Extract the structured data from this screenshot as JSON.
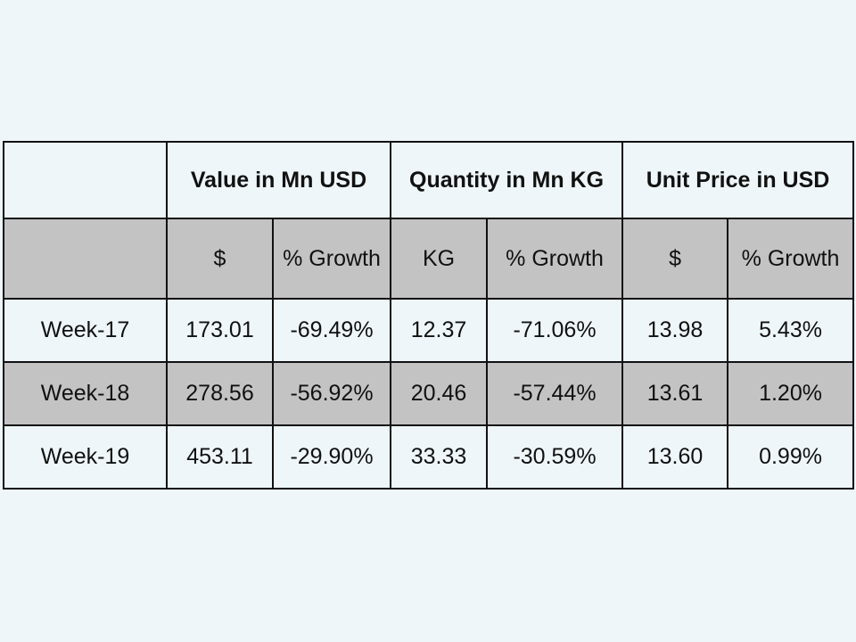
{
  "table": {
    "corner": "",
    "groups": [
      "Value in Mn USD",
      "Quantity in Mn KG",
      "Unit Price in USD"
    ],
    "subheaders": [
      "",
      "$",
      "% Growth",
      "KG",
      "% Growth",
      "$",
      "% Growth"
    ],
    "rows": [
      {
        "label": "Week-17",
        "cells": [
          "173.01",
          "-69.49%",
          "12.37",
          "-71.06%",
          "13.98",
          "5.43%"
        ]
      },
      {
        "label": "Week-18",
        "cells": [
          "278.56",
          "-56.92%",
          "20.46",
          "-57.44%",
          "13.61",
          "1.20%"
        ]
      },
      {
        "label": "Week-19",
        "cells": [
          "453.11",
          "-29.90%",
          "33.33",
          "-30.59%",
          "13.60",
          "0.99%"
        ]
      }
    ]
  },
  "colors": {
    "background": "#eef6f9",
    "shaded_row": "#c3c3c3",
    "border": "#111111"
  }
}
